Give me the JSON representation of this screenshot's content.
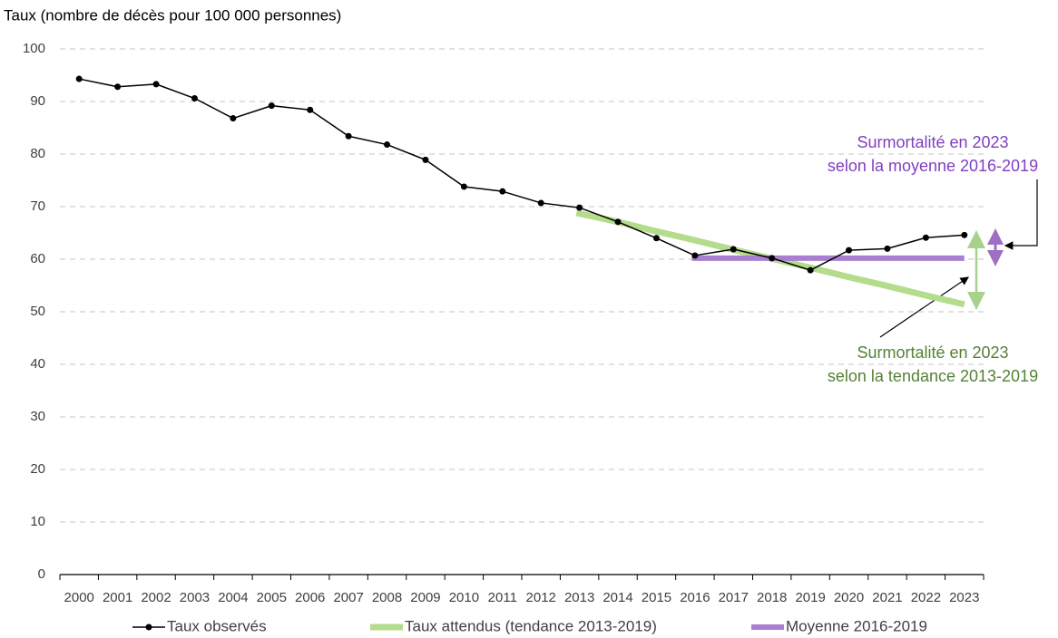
{
  "chart_data": {
    "type": "line",
    "y_label": "Taux (nombre de décès pour 100 000 personnes)",
    "categories": [
      "2000",
      "2001",
      "2002",
      "2003",
      "2004",
      "2005",
      "2006",
      "2007",
      "2008",
      "2009",
      "2010",
      "2011",
      "2012",
      "2013",
      "2014",
      "2015",
      "2016",
      "2017",
      "2018",
      "2019",
      "2020",
      "2021",
      "2022",
      "2023"
    ],
    "series": [
      {
        "name": "Taux observés",
        "color": "#000000",
        "width": 1.5,
        "markers": true,
        "values": [
          94.3,
          92.8,
          93.3,
          90.6,
          86.8,
          89.2,
          88.4,
          83.4,
          81.8,
          78.9,
          73.8,
          72.9,
          70.7,
          69.8,
          67.1,
          64.0,
          60.7,
          61.9,
          60.2,
          57.9,
          61.7,
          62.0,
          64.1,
          64.6
        ]
      },
      {
        "name": "Taux attendus (tendance 2013-2019)",
        "color": "#b4dc8c",
        "width": 7,
        "markers": false,
        "values": [
          null,
          null,
          null,
          null,
          null,
          null,
          null,
          null,
          null,
          null,
          null,
          null,
          null,
          68.8,
          67.1,
          65.3,
          63.6,
          61.8,
          60.1,
          58.4,
          56.6,
          54.9,
          53.1,
          51.4
        ]
      },
      {
        "name": "Moyenne 2016-2019",
        "color": "#a97fd0",
        "width": 6,
        "markers": false,
        "values": [
          null,
          null,
          null,
          null,
          null,
          null,
          null,
          null,
          null,
          null,
          null,
          null,
          null,
          null,
          null,
          null,
          60.2,
          60.2,
          60.2,
          60.2,
          60.2,
          60.2,
          60.2,
          60.2
        ]
      }
    ],
    "ylim": [
      0,
      100
    ],
    "yticks": [
      0,
      10,
      20,
      30,
      40,
      50,
      60,
      70,
      80,
      90,
      100
    ],
    "grid": true,
    "legend": "bottom",
    "annotations": [
      {
        "lines": [
          "Surmortalité en 2023",
          "selon la moyenne 2016-2019"
        ],
        "color": "#7f3fbf"
      },
      {
        "lines": [
          "Surmortalité en 2023",
          "selon la tendance 2013-2019"
        ],
        "color": "#548235"
      }
    ]
  }
}
